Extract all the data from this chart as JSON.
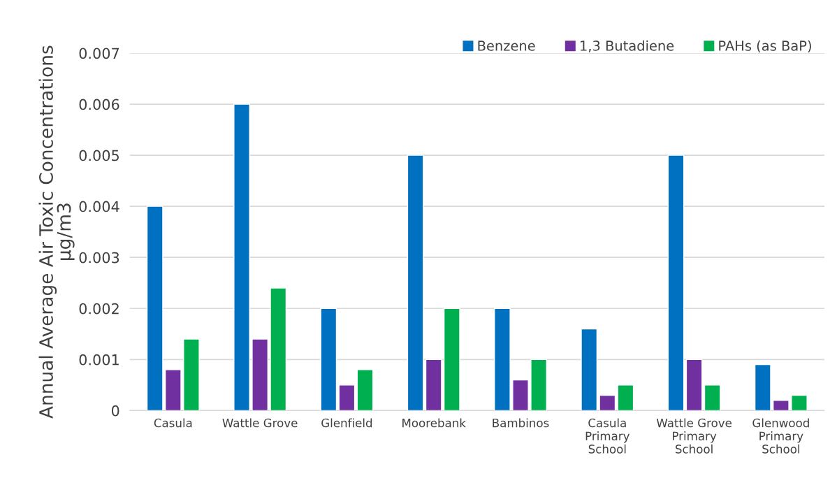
{
  "chart_data": {
    "type": "bar",
    "ylabel": "Annual Average Air Toxic Concentrations\nµg/m3",
    "categories": [
      "Casula",
      "Wattle Grove",
      "Glenfield",
      "Moorebank",
      "Bambinos",
      "Casula\nPrimary\nSchool",
      "Wattle Grove\nPrimary\nSchool",
      "Glenwood\nPrimary\nSchool"
    ],
    "series": [
      {
        "name": "Benzene",
        "color": "#0070c0",
        "values": [
          0.004,
          0.006,
          0.002,
          0.005,
          0.002,
          0.0016,
          0.005,
          0.0009
        ]
      },
      {
        "name": "1,3 Butadiene",
        "color": "#7030a0",
        "values": [
          0.0008,
          0.0014,
          0.0005,
          0.001,
          0.0006,
          0.0003,
          0.001,
          0.0002
        ]
      },
      {
        "name": "PAHs (as BaP)",
        "color": "#00b050",
        "values": [
          0.0014,
          0.0024,
          0.0008,
          0.002,
          0.001,
          0.0005,
          0.0005,
          0.0003
        ]
      }
    ],
    "ylim": [
      0,
      0.007
    ],
    "yticks": [
      0,
      0.001,
      0.002,
      0.003,
      0.004,
      0.005,
      0.006,
      0.007
    ],
    "grid": "y",
    "legend": "top right"
  }
}
